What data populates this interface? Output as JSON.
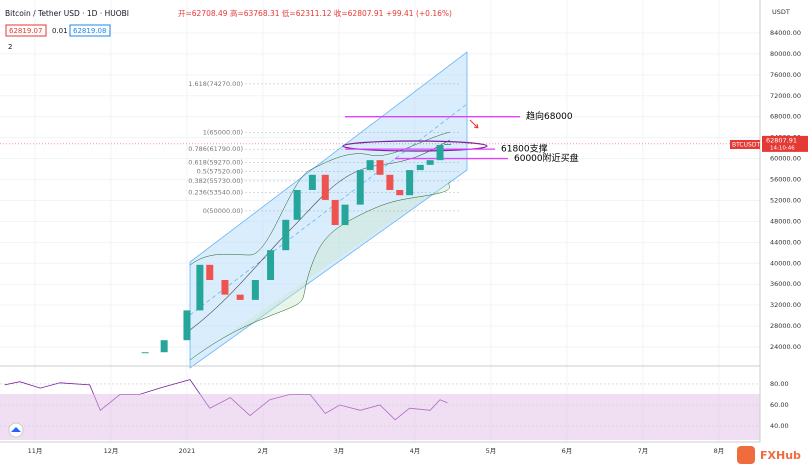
{
  "header": {
    "symbol": "Bitcoin / Tether USD · 1D · HUOBI",
    "ohlc": "开=62708.49 高=63768.31 低=62311.12 收=62807.91 +99.41 (+0.16%)",
    "bid": "62819.07",
    "spread": "0.01",
    "ask": "62819.08",
    "indicator_count": "2",
    "axis_unit": "USDT",
    "ticker": "BTCUSDT",
    "countdown": "14:10:46",
    "watermark": "FXHub"
  },
  "chart_data": [
    {
      "type": "candlestick",
      "last_price": 62807.91,
      "x": [
        1.45,
        1.7,
        2.0,
        2.17,
        2.3,
        2.5,
        2.7,
        2.9,
        3.1,
        3.3,
        3.45,
        3.65,
        3.82,
        3.95,
        4.08,
        4.28,
        4.41,
        4.54,
        4.67,
        4.8,
        4.93,
        5.07,
        5.2,
        5.33,
        5.43
      ],
      "values": [
        23000,
        25300,
        31000,
        39700,
        36800,
        34000,
        33000,
        36800,
        42500,
        48300,
        54000,
        56900,
        52100,
        47300,
        51200,
        57800,
        59700,
        56900,
        54000,
        53000,
        57800,
        58800,
        59700,
        62600,
        62800
      ],
      "xlim": [
        -0.46,
        9.54
      ],
      "ylim": [
        20560,
        90300
      ],
      "yticks": [
        {
          "value": 24000,
          "label": "24000.00"
        },
        {
          "value": 28000,
          "label": "28000.00"
        },
        {
          "value": 32000,
          "label": "32000.00"
        },
        {
          "value": 36000,
          "label": "36000.00"
        },
        {
          "value": 40000,
          "label": "40000.00"
        },
        {
          "value": 44000,
          "label": "44000.00"
        },
        {
          "value": 48000,
          "label": "48000.00"
        },
        {
          "value": 52000,
          "label": "52000.00"
        },
        {
          "value": 56000,
          "label": "56000.00"
        },
        {
          "value": 60000,
          "label": "60000.00"
        },
        {
          "value": 64000,
          "label": "64000.00"
        },
        {
          "value": 68000,
          "label": "68000.00"
        },
        {
          "value": 72000,
          "label": "72000.00"
        },
        {
          "value": 76000,
          "label": "76000.00"
        },
        {
          "value": 80000,
          "label": "80000.00"
        },
        {
          "value": 84000,
          "label": "84000.00"
        }
      ],
      "fib_levels": [
        {
          "value": 74270,
          "label": "1.618(74270.00)"
        },
        {
          "value": 65000,
          "label": "1(65000.00)"
        },
        {
          "value": 61790,
          "label": "0.786(61790.00)"
        },
        {
          "value": 59270,
          "label": "0.618(59270.00)"
        },
        {
          "value": 57520,
          "label": "0.5(57520.00)"
        },
        {
          "value": 55730,
          "label": "0.382(55730.00)"
        },
        {
          "value": 53540,
          "label": "0.236(53540.00)"
        },
        {
          "value": 50000,
          "label": "0(50000.00)"
        }
      ],
      "annotations": [
        {
          "value": 68000,
          "text": "趋向68000"
        },
        {
          "value": 61800,
          "text": "61800支撑"
        },
        {
          "value": 60000,
          "text": "60000附近买盘"
        }
      ]
    },
    {
      "type": "line",
      "color": "#7b1fa2",
      "x": [
        -0.4,
        -0.2,
        0.07,
        0.33,
        0.72,
        0.86,
        1.12,
        1.38,
        1.64,
        2.04,
        2.3,
        2.57,
        2.83,
        3.09,
        3.36,
        3.62,
        3.82,
        4.01,
        4.28,
        4.54,
        4.74,
        4.93,
        5.2,
        5.33,
        5.43
      ],
      "values": [
        79,
        82,
        76,
        81,
        79,
        55,
        70,
        70,
        76,
        84,
        57,
        67,
        50,
        65,
        70,
        70,
        52,
        60,
        55,
        60,
        46,
        57,
        55,
        65,
        62
      ],
      "xlim": [
        -0.46,
        9.54
      ],
      "ylim": [
        25,
        95
      ],
      "yticks": [
        {
          "value": 40,
          "label": "40.00"
        },
        {
          "value": 60,
          "label": "60.00"
        },
        {
          "value": 80,
          "label": "80.00"
        }
      ],
      "xticks": [
        {
          "value": 0,
          "label": "11月"
        },
        {
          "value": 1,
          "label": "12月"
        },
        {
          "value": 2,
          "label": "2021"
        },
        {
          "value": 3,
          "label": "2月"
        },
        {
          "value": 4,
          "label": "3月"
        },
        {
          "value": 5,
          "label": "4月"
        },
        {
          "value": 6,
          "label": "5月"
        },
        {
          "value": 7,
          "label": "6月"
        },
        {
          "value": 8,
          "label": "7月"
        },
        {
          "value": 9,
          "label": "8月"
        }
      ]
    }
  ]
}
